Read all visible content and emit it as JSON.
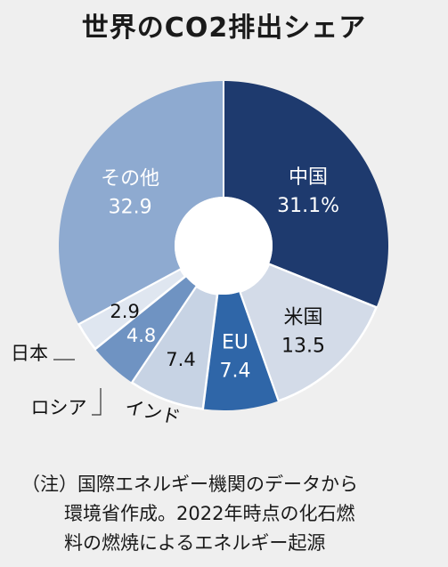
{
  "chart_data": {
    "type": "pie",
    "title": "世界のCO2排出シェア",
    "categories": [
      "中国",
      "米国",
      "EU",
      "インド",
      "ロシア",
      "日本",
      "その他"
    ],
    "values": [
      31.1,
      13.5,
      7.4,
      7.4,
      4.8,
      2.9,
      32.9
    ],
    "value_labels": [
      "31.1%",
      "13.5",
      "7.4",
      "7.4",
      "4.8",
      "2.9",
      "32.9"
    ],
    "colors": [
      "#1e3a6e",
      "#d3dbe8",
      "#2f66a8",
      "#c7d3e4",
      "#6f93c2",
      "#dfe6f0",
      "#8eaad0"
    ],
    "donut": true,
    "legend": "none"
  },
  "note": {
    "line1": "（注）国際エネルギー機関のデータから",
    "line2": "環境省作成。2022年時点の化石燃",
    "line3": "料の燃焼によるエネルギー起源"
  }
}
